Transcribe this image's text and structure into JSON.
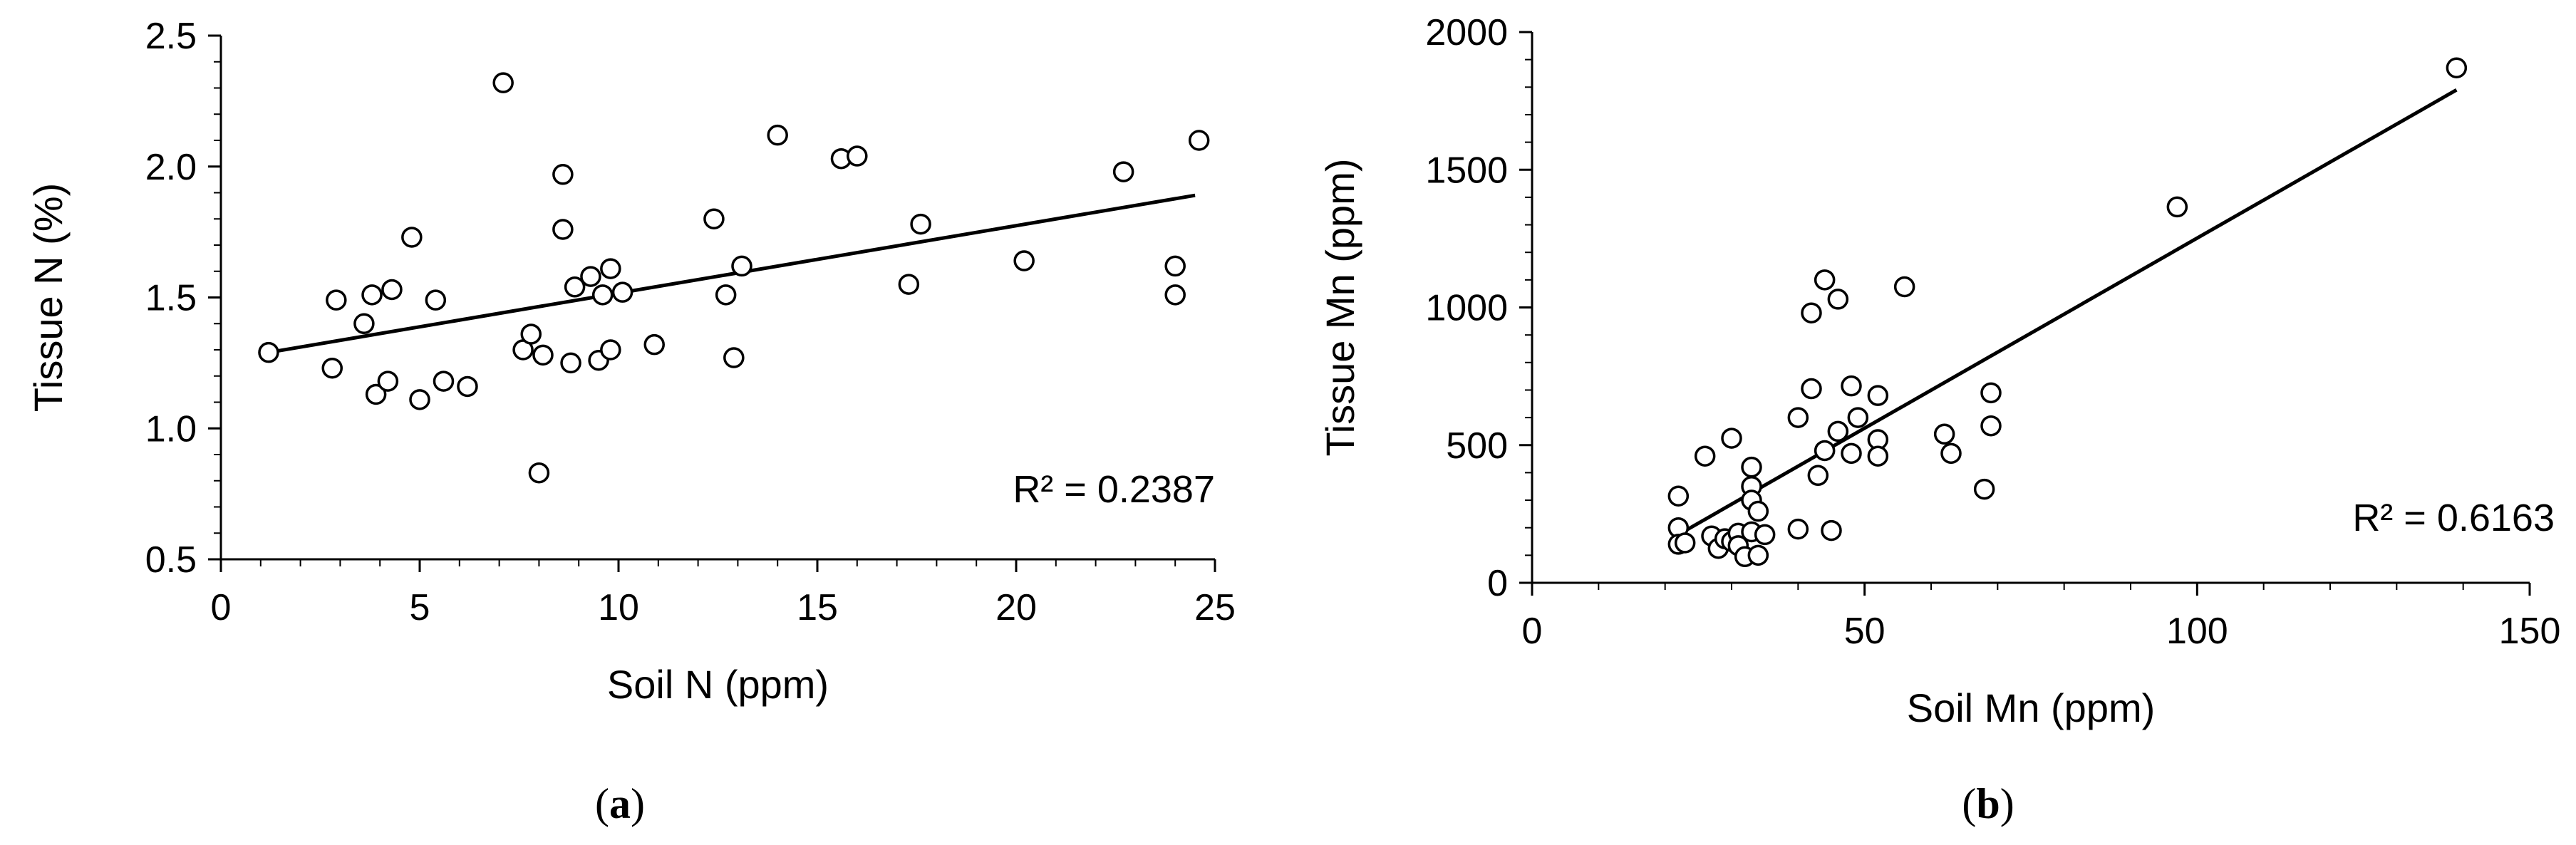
{
  "figure": {
    "captions": [
      {
        "open": "(",
        "letter": "a",
        "close": ")"
      },
      {
        "open": "(",
        "letter": "b",
        "close": ")"
      }
    ]
  },
  "chart_data": [
    {
      "type": "scatter",
      "xlabel": "Soil N (ppm)",
      "ylabel": "Tissue N (%)",
      "xlim": [
        0,
        25
      ],
      "ylim": [
        0.5,
        2.5
      ],
      "xticks": [
        0,
        5,
        10,
        15,
        20,
        25
      ],
      "yticks": [
        0.5,
        1.0,
        1.5,
        2.0,
        2.5
      ],
      "xtick_labels": [
        "0",
        "5",
        "10",
        "15",
        "20",
        "25"
      ],
      "ytick_labels": [
        "0.5",
        "1.0",
        "1.5",
        "2.0",
        "2.5"
      ],
      "grid": false,
      "trendline": {
        "x": [
          1.2,
          24.5
        ],
        "y": [
          1.29,
          1.89
        ]
      },
      "r2_label": "R² = 0.2387",
      "points": [
        [
          1.2,
          1.29
        ],
        [
          2.8,
          1.23
        ],
        [
          2.9,
          1.49
        ],
        [
          3.6,
          1.4
        ],
        [
          3.8,
          1.51
        ],
        [
          3.9,
          1.13
        ],
        [
          4.2,
          1.18
        ],
        [
          4.3,
          1.53
        ],
        [
          4.8,
          1.73
        ],
        [
          5.0,
          1.11
        ],
        [
          5.4,
          1.49
        ],
        [
          5.6,
          1.18
        ],
        [
          6.2,
          1.16
        ],
        [
          7.1,
          2.32
        ],
        [
          7.6,
          1.3
        ],
        [
          7.8,
          1.36
        ],
        [
          8.0,
          0.83
        ],
        [
          8.1,
          1.28
        ],
        [
          8.6,
          1.97
        ],
        [
          8.6,
          1.76
        ],
        [
          8.8,
          1.25
        ],
        [
          8.9,
          1.54
        ],
        [
          9.3,
          1.58
        ],
        [
          9.5,
          1.26
        ],
        [
          9.6,
          1.51
        ],
        [
          9.8,
          1.3
        ],
        [
          9.8,
          1.61
        ],
        [
          10.1,
          1.52
        ],
        [
          10.9,
          1.32
        ],
        [
          12.4,
          1.8
        ],
        [
          12.7,
          1.51
        ],
        [
          12.9,
          1.27
        ],
        [
          13.1,
          1.62
        ],
        [
          14.0,
          2.12
        ],
        [
          15.6,
          2.03
        ],
        [
          16.0,
          2.04
        ],
        [
          17.3,
          1.55
        ],
        [
          17.6,
          1.78
        ],
        [
          20.2,
          1.64
        ],
        [
          22.7,
          1.98
        ],
        [
          24.0,
          1.51
        ],
        [
          24.0,
          1.62
        ],
        [
          24.6,
          2.1
        ]
      ]
    },
    {
      "type": "scatter",
      "xlabel": "Soil Mn (ppm)",
      "ylabel": "Tissue Mn (ppm)",
      "xlim": [
        0,
        150
      ],
      "ylim": [
        0,
        2000
      ],
      "xticks": [
        0,
        50,
        100,
        150
      ],
      "yticks": [
        0,
        500,
        1000,
        1500,
        2000
      ],
      "xtick_labels": [
        "0",
        "50",
        "100",
        "150"
      ],
      "ytick_labels": [
        "0",
        "500",
        "1000",
        "1500",
        "2000"
      ],
      "grid": false,
      "trendline": {
        "x": [
          22,
          139
        ],
        "y": [
          175,
          1790
        ]
      },
      "r2_label": "R² = 0.6163",
      "points": [
        [
          139,
          1870
        ],
        [
          97,
          1365
        ],
        [
          56,
          1075
        ],
        [
          44,
          1100
        ],
        [
          46,
          1030
        ],
        [
          42,
          980
        ],
        [
          42,
          705
        ],
        [
          48,
          715
        ],
        [
          52,
          680
        ],
        [
          69,
          690
        ],
        [
          49,
          600
        ],
        [
          40,
          600
        ],
        [
          46,
          550
        ],
        [
          62,
          540
        ],
        [
          69,
          570
        ],
        [
          52,
          520
        ],
        [
          63,
          470
        ],
        [
          52,
          460
        ],
        [
          44,
          480
        ],
        [
          48,
          470
        ],
        [
          30,
          525
        ],
        [
          26,
          460
        ],
        [
          33,
          420
        ],
        [
          43,
          390
        ],
        [
          33,
          350
        ],
        [
          68,
          340
        ],
        [
          22,
          315
        ],
        [
          33,
          300
        ],
        [
          34,
          260
        ],
        [
          22,
          200
        ],
        [
          40,
          195
        ],
        [
          45,
          190
        ],
        [
          22,
          140
        ],
        [
          23,
          145
        ],
        [
          27,
          170
        ],
        [
          28,
          125
        ],
        [
          29,
          160
        ],
        [
          30,
          150
        ],
        [
          31,
          180
        ],
        [
          31,
          135
        ],
        [
          32,
          95
        ],
        [
          33,
          185
        ],
        [
          34,
          100
        ],
        [
          35,
          175
        ]
      ]
    }
  ]
}
